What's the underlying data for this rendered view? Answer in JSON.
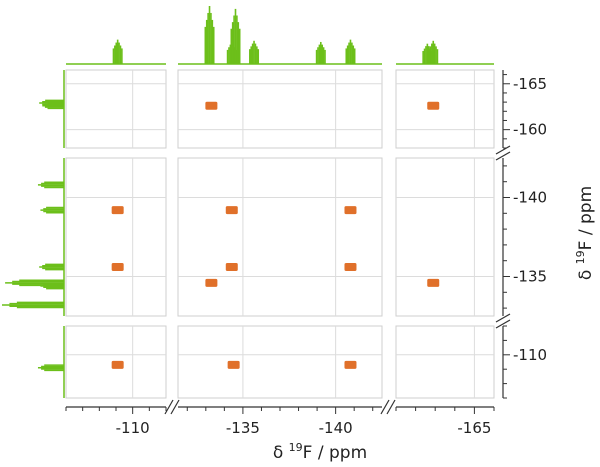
{
  "chart_data": {
    "type": "2D NMR correlation spectrum",
    "xlabel": {
      "pre": "δ ",
      "sup": "19",
      "post": "F / ppm"
    },
    "ylabel": {
      "pre": "δ ",
      "sup": "19",
      "post": "F / ppm"
    },
    "x_tick_labels": [
      "-110",
      "-135",
      "-140",
      "-165"
    ],
    "y_tick_labels": [
      "-165",
      "-160",
      "-140",
      "-135",
      "-110"
    ],
    "colors": {
      "projection": "#6cbf1a",
      "cross_peak": "#e0702a",
      "grid": "#dcdcdc",
      "frame": "#cfcfcf",
      "axis": "#333333"
    },
    "x_segments": [
      {
        "id": "xseg1",
        "range": [
          -106,
          -112
        ],
        "ticks": [
          -110
        ]
      },
      {
        "id": "xseg2",
        "range": [
          -131.5,
          -142.5
        ],
        "ticks": [
          -135,
          -140
        ]
      },
      {
        "id": "xseg3",
        "range": [
          -161,
          -166
        ],
        "ticks": [
          -165
        ]
      }
    ],
    "y_segments": [
      {
        "id": "yseg1",
        "range": [
          -166.5,
          -158
        ],
        "ticks": [
          -165,
          -160
        ]
      },
      {
        "id": "yseg2",
        "range": [
          -142.5,
          -132.5
        ],
        "ticks": [
          -140,
          -135
        ]
      },
      {
        "id": "yseg3",
        "range": [
          -112,
          -107
        ],
        "ticks": [
          -110
        ]
      }
    ],
    "cross_peaks": [
      {
        "x": -109.1,
        "y": -139.2
      },
      {
        "x": -109.1,
        "y": -135.6
      },
      {
        "x": -109.1,
        "y": -109.3
      },
      {
        "x": -133.3,
        "y": -162.6
      },
      {
        "x": -133.3,
        "y": -134.6
      },
      {
        "x": -134.4,
        "y": -139.2
      },
      {
        "x": -134.4,
        "y": -135.6
      },
      {
        "x": -134.5,
        "y": -109.3
      },
      {
        "x": -140.8,
        "y": -139.2
      },
      {
        "x": -140.8,
        "y": -135.6
      },
      {
        "x": -140.8,
        "y": -109.3
      },
      {
        "x": -162.9,
        "y": -162.6
      },
      {
        "x": -162.9,
        "y": -134.6
      }
    ],
    "projection_peaks": [
      {
        "shift": -109.1,
        "intensity": 0.42
      },
      {
        "shift": -133.2,
        "intensity": 1.0
      },
      {
        "shift": -134.4,
        "intensity": 0.38
      },
      {
        "shift": -140.8,
        "intensity": 0.42
      },
      {
        "shift": -162.9,
        "intensity": 0.4
      },
      {
        "shift": -139.2,
        "intensity": 0.38
      },
      {
        "shift": -135.6,
        "intensity": 0.4
      },
      {
        "shift": -134.6,
        "intensity": 0.95
      },
      {
        "shift": -162.6,
        "intensity": 0.35
      }
    ],
    "grid": true
  }
}
